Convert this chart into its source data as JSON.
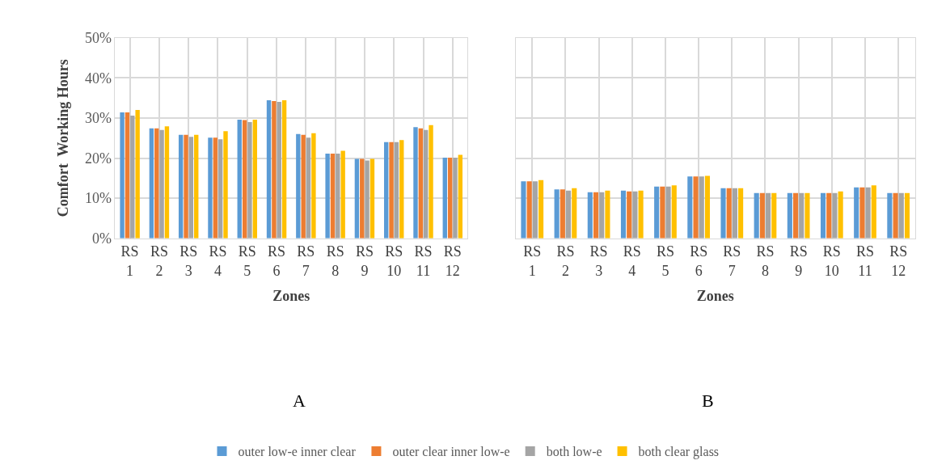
{
  "chart_data": [
    {
      "type": "bar",
      "ylabel": "Comfort  Working Hours",
      "xlabel": "Zones",
      "annotations": [
        "A"
      ],
      "categories": [
        "RS 1",
        "RS 2",
        "RS 3",
        "RS 4",
        "RS 5",
        "RS 6",
        "RS 7",
        "RS 8",
        "RS 9",
        "RS 10",
        "RS 11",
        "RS 12"
      ],
      "series": [
        {
          "name": "outer low-e inner clear",
          "color": "#5b9bd5",
          "values": [
            31.4,
            27.4,
            25.8,
            25.1,
            29.6,
            34.4,
            26.0,
            21.1,
            19.8,
            24.0,
            27.7,
            20.1
          ]
        },
        {
          "name": "outer clear inner low-e",
          "color": "#ed7d31",
          "values": [
            31.4,
            27.4,
            25.8,
            25.1,
            29.5,
            34.2,
            25.8,
            21.1,
            19.8,
            24.0,
            27.4,
            20.1
          ]
        },
        {
          "name": "both low-e",
          "color": "#a5a5a5",
          "values": [
            30.6,
            27.0,
            25.3,
            24.7,
            29.0,
            34.0,
            25.1,
            21.1,
            19.4,
            24.0,
            27.0,
            20.1
          ]
        },
        {
          "name": "both clear glass",
          "color": "#ffc000",
          "values": [
            32.0,
            27.9,
            25.8,
            26.7,
            29.6,
            34.4,
            26.2,
            21.8,
            19.8,
            24.5,
            28.2,
            20.8
          ]
        }
      ],
      "ylim": [
        0,
        50
      ],
      "yticks": [
        {
          "value": 0,
          "label": "0%"
        },
        {
          "value": 10,
          "label": "10%"
        },
        {
          "value": 20,
          "label": "20%"
        },
        {
          "value": 30,
          "label": "30%"
        },
        {
          "value": 40,
          "label": "40%"
        },
        {
          "value": 50,
          "label": "50%"
        }
      ],
      "grid": true,
      "legend": "bottom"
    },
    {
      "type": "bar",
      "xlabel": "Zones",
      "annotations": [
        "B"
      ],
      "categories": [
        "RS 1",
        "RS 2",
        "RS 3",
        "RS 4",
        "RS 5",
        "RS 6",
        "RS 7",
        "RS 8",
        "RS 9",
        "RS 10",
        "RS 11",
        "RS 12"
      ],
      "series": [
        {
          "name": "outer low-e inner clear",
          "color": "#5b9bd5",
          "values": [
            14.2,
            12.2,
            11.5,
            11.9,
            12.9,
            15.4,
            12.5,
            11.3,
            11.3,
            11.3,
            12.7,
            11.3
          ]
        },
        {
          "name": "outer clear inner low-e",
          "color": "#ed7d31",
          "values": [
            14.2,
            12.2,
            11.5,
            11.7,
            12.9,
            15.4,
            12.5,
            11.3,
            11.3,
            11.3,
            12.7,
            11.3
          ]
        },
        {
          "name": "both low-e",
          "color": "#a5a5a5",
          "values": [
            14.2,
            11.9,
            11.5,
            11.7,
            12.9,
            15.4,
            12.5,
            11.3,
            11.3,
            11.3,
            12.7,
            11.3
          ]
        },
        {
          "name": "both clear glass",
          "color": "#ffc000",
          "values": [
            14.5,
            12.5,
            11.9,
            11.9,
            13.2,
            15.6,
            12.5,
            11.3,
            11.3,
            11.7,
            13.2,
            11.3
          ]
        }
      ],
      "ylim": [
        0,
        50
      ],
      "yticks": [
        {
          "value": 0,
          "label": null
        },
        {
          "value": 10,
          "label": null
        },
        {
          "value": 20,
          "label": null
        },
        {
          "value": 30,
          "label": null
        },
        {
          "value": 40,
          "label": null
        },
        {
          "value": 50,
          "label": null
        }
      ],
      "grid": true,
      "legend": "bottom",
      "tick_labels": "x"
    }
  ]
}
